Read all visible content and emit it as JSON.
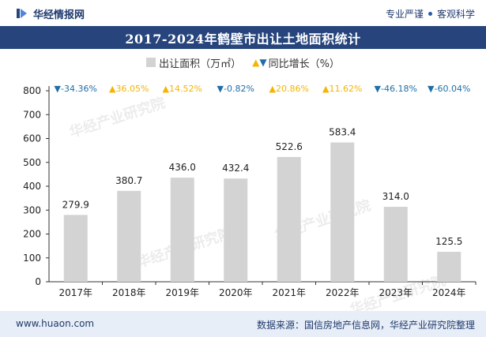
{
  "header": {
    "brand": "华经情报网",
    "tagline_left": "专业严谨",
    "tagline_right": "客观科学"
  },
  "chart_data": {
    "type": "bar",
    "title": "2017-2024年鹤壁市出让土地面积统计",
    "categories": [
      "2017年",
      "2018年",
      "2019年",
      "2020年",
      "2021年",
      "2022年",
      "2023年",
      "2024年"
    ],
    "series": [
      {
        "name": "出让面积（万㎡）",
        "values": [
          279.9,
          380.7,
          436.0,
          432.4,
          522.6,
          583.4,
          314.0,
          125.5
        ],
        "labels": [
          "279.9",
          "380.7",
          "436.0",
          "432.4",
          "522.6",
          "583.4",
          "314.0",
          "125.5"
        ]
      }
    ],
    "growth": {
      "name": "同比增长（%）",
      "labels": [
        "-34.36%",
        "36.05%",
        "14.52%",
        "-0.82%",
        "20.86%",
        "11.62%",
        "-46.18%",
        "-60.04%"
      ],
      "directions": [
        "down",
        "up",
        "up",
        "down",
        "up",
        "up",
        "down",
        "down"
      ]
    },
    "yticks": [
      0,
      100,
      200,
      300,
      400,
      500,
      600,
      700,
      800
    ],
    "ylim": [
      0,
      800
    ],
    "xlabel": "",
    "ylabel": "",
    "legend_position": "top-center",
    "colors": {
      "bar": "#d3d3d3",
      "up": "#f5b400",
      "down": "#1f6ea8",
      "axis": "#333333"
    }
  },
  "legend": {
    "bar_label": "出让面积（万㎡）",
    "growth_label": "同比增长（%）"
  },
  "watermark": {
    "text": "华经产业研究院"
  },
  "footer": {
    "site": "www.huaon.com",
    "source": "数据来源：国信房地产信息网，华经产业研究院整理"
  },
  "colors": {
    "title_bg": "#27457c",
    "footer_bg": "#e8eef7",
    "brand_text": "#1f3a6e"
  }
}
